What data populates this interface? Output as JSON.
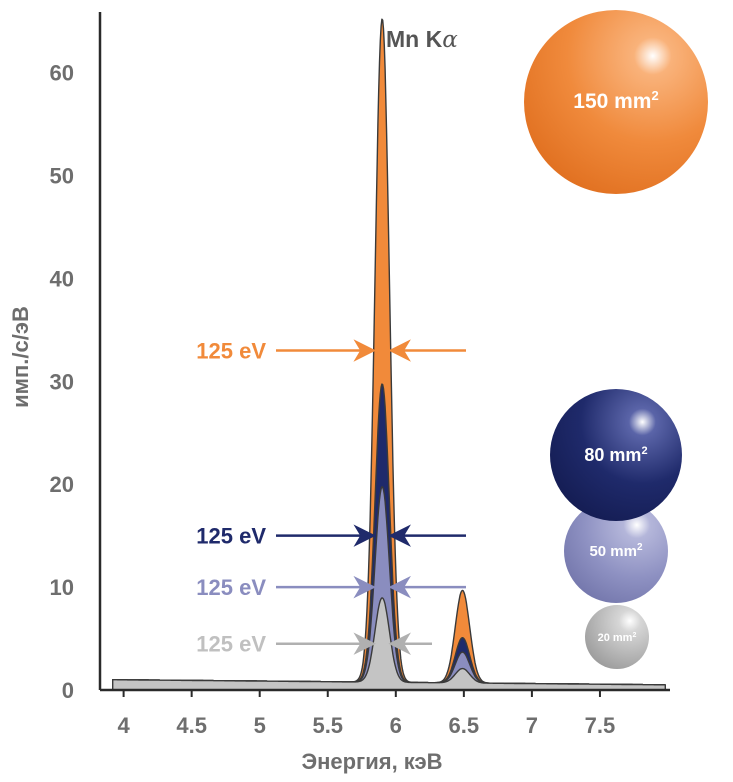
{
  "chart_data": {
    "type": "area",
    "title": "",
    "xlabel": "Энергия, кэВ",
    "ylabel": "имп./с/эВ",
    "xlim": [
      3.9,
      8.0
    ],
    "ylim": [
      0,
      66
    ],
    "xticks": [
      "4",
      "4.5",
      "5",
      "5.5",
      "6",
      "6.5",
      "7",
      "7.5"
    ],
    "xtick_values": [
      4,
      4.5,
      5,
      5.5,
      6,
      6.5,
      7,
      7.5
    ],
    "yticks": [
      "0",
      "10",
      "20",
      "30",
      "40",
      "50",
      "60"
    ],
    "ytick_values": [
      0,
      10,
      20,
      30,
      40,
      50,
      60
    ],
    "peak_label": "Mn K",
    "peak_label_symbol": "α",
    "background_level": [
      1.0,
      0.5
    ],
    "series": [
      {
        "name": "150 mm²",
        "color": "#f18a3a",
        "ka_peak": 64.5,
        "kb_peak": 9.0,
        "fwhm_label": "125 eV",
        "fwhm_y": 33
      },
      {
        "name": "80 mm²",
        "color": "#1f2a6b",
        "ka_peak": 29.0,
        "kb_peak": 4.4,
        "fwhm_label": "125 eV",
        "fwhm_y": 15
      },
      {
        "name": "50 mm²",
        "color": "#8a8dbf",
        "ka_peak": 19.0,
        "kb_peak": 3.0,
        "fwhm_label": "125 eV",
        "fwhm_y": 10
      },
      {
        "name": "20 mm²",
        "color": "#c4c4c4",
        "ka_peak": 8.2,
        "kb_peak": 1.4,
        "fwhm_label": "125 eV",
        "fwhm_y": 4.5
      }
    ],
    "ka_energy": 5.9,
    "kb_energy": 6.49,
    "fwhm_kev": 0.125,
    "legend": [
      {
        "text": "150 mm",
        "sup": "2",
        "color": "#f08a3c"
      },
      {
        "text": "80 mm",
        "sup": "2",
        "color": "#1f2a6b"
      },
      {
        "text": "50 mm",
        "sup": "2",
        "color": "#8e91c2"
      },
      {
        "text": "20 mm",
        "sup": "2",
        "color": "#b6b6b6"
      }
    ]
  }
}
